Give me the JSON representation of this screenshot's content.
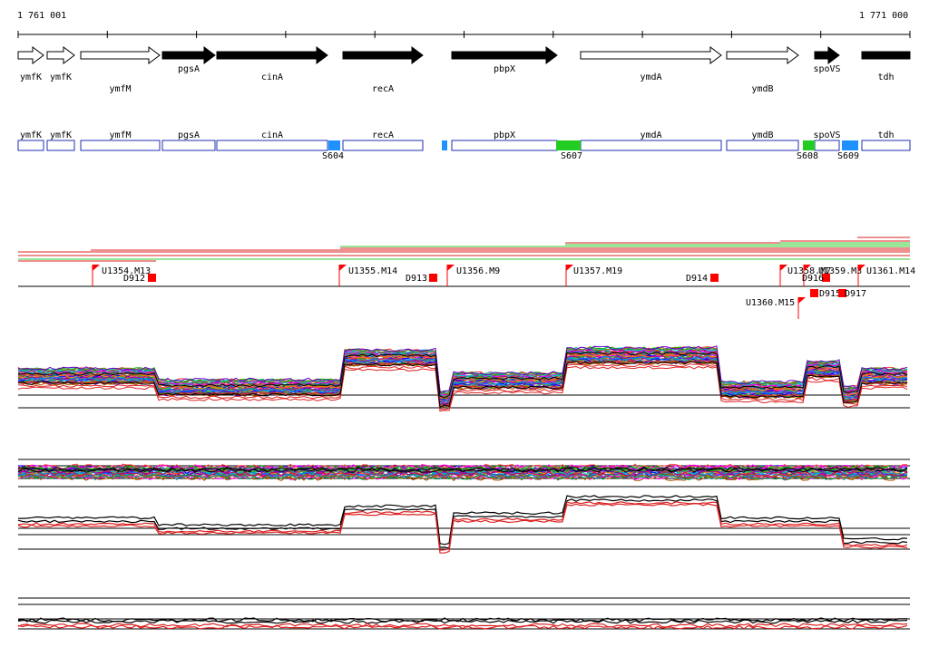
{
  "ruler": {
    "start_label": "1 761 001",
    "end_label": "1 771 000"
  },
  "genes": [
    {
      "name": "ymfK",
      "label_row": "below",
      "filled": false
    },
    {
      "name": "ymfK",
      "label_row": "below",
      "filled": false
    },
    {
      "name": "ymfM",
      "label_row": "below2",
      "filled": false
    },
    {
      "name": "pgsA",
      "label_row": "above",
      "filled": true
    },
    {
      "name": "cinA",
      "label_row": "below",
      "filled": true
    },
    {
      "name": "recA",
      "label_row": "below2",
      "filled": true
    },
    {
      "name": "pbpX",
      "label_row": "above",
      "filled": true
    },
    {
      "name": "ymdA",
      "label_row": "below",
      "filled": false
    },
    {
      "name": "ymdB",
      "label_row": "below2",
      "filled": false
    },
    {
      "name": "spoVS",
      "label_row": "above",
      "filled": true
    },
    {
      "name": "tdh",
      "label_row": "below",
      "filled": true
    }
  ],
  "segments": [
    {
      "name": "S604",
      "color": "#1e90ff"
    },
    {
      "name": "S607",
      "color": "#22cc22"
    },
    {
      "name": "S608",
      "color": "#22cc22"
    },
    {
      "name": "S609",
      "color": "#1e90ff"
    }
  ],
  "features": [
    {
      "name": "U1354.M13",
      "kind": "up"
    },
    {
      "name": "D912",
      "kind": "down"
    },
    {
      "name": "U1355.M14",
      "kind": "up"
    },
    {
      "name": "D913",
      "kind": "down"
    },
    {
      "name": "U1356.M9",
      "kind": "up"
    },
    {
      "name": "U1357.M19",
      "kind": "up"
    },
    {
      "name": "D914",
      "kind": "down"
    },
    {
      "name": "U1358.M7",
      "kind": "up"
    },
    {
      "name": "U1359.M3",
      "kind": "up"
    },
    {
      "name": "D916",
      "kind": "down"
    },
    {
      "name": "U1361.M14",
      "kind": "up"
    },
    {
      "name": "U1360.M15",
      "kind": "up"
    },
    {
      "name": "D915",
      "kind": "down"
    },
    {
      "name": "D917",
      "kind": "down"
    }
  ],
  "colors": {
    "gene_fill": "#000000",
    "gene_box": "#1f2fb0",
    "feature": "#ff0000",
    "tiling_red": "#dd2222",
    "tiling_green": "#33cc33"
  }
}
